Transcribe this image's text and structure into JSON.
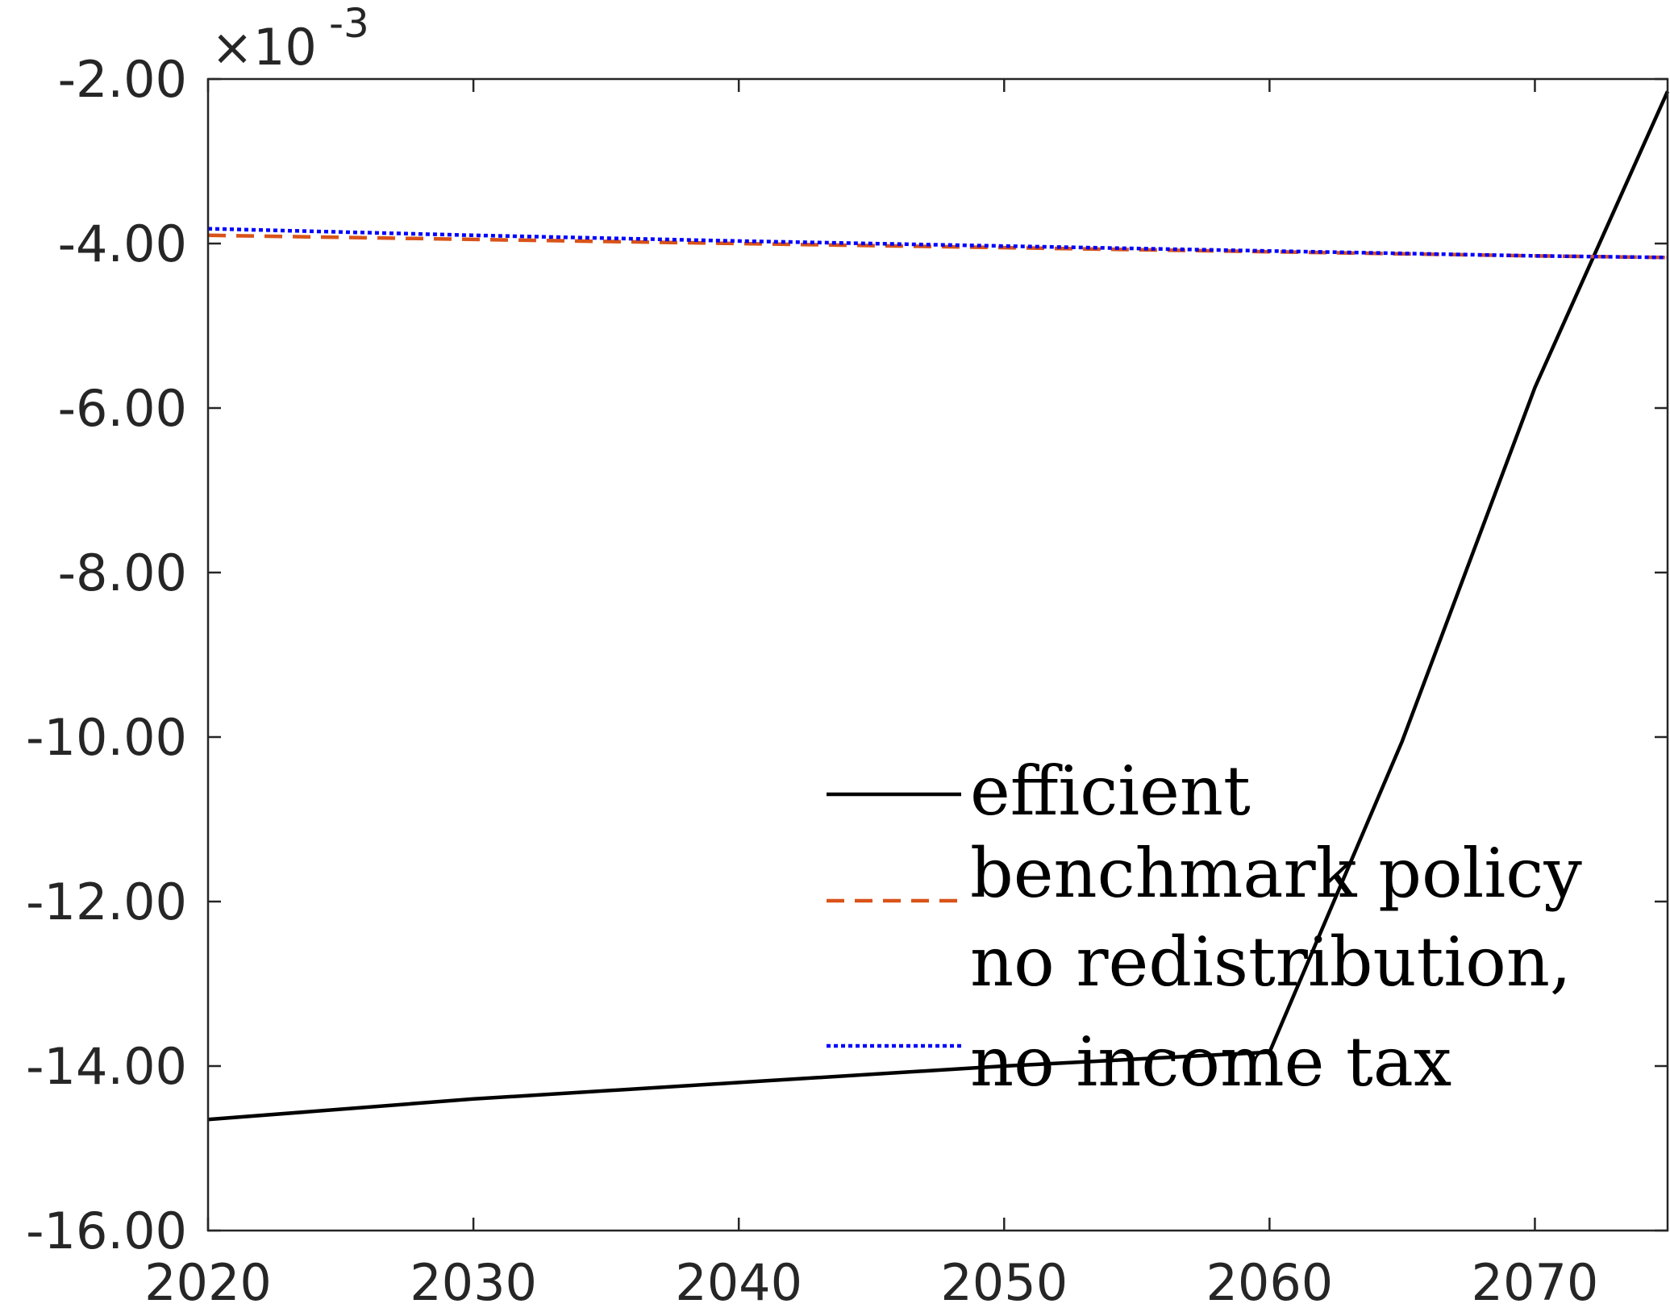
{
  "chart_data": {
    "type": "line",
    "title": "",
    "xlabel": "",
    "ylabel": "",
    "y_exponent_label": {
      "base": "×10",
      "power": "-3"
    },
    "xlim": [
      2020,
      2075
    ],
    "ylim": [
      -16,
      -2
    ],
    "x_ticks": [
      2020,
      2030,
      2040,
      2050,
      2060,
      2070
    ],
    "x_tick_labels": [
      "2020",
      "2030",
      "2040",
      "2050",
      "2060",
      "2070"
    ],
    "y_ticks": [
      -16,
      -14,
      -12,
      -10,
      -8,
      -6,
      -4,
      -2
    ],
    "y_tick_labels": [
      "-16.00",
      "-14.00",
      "-12.00",
      "-10.00",
      "-8.00",
      "-6.00",
      "-4.00",
      "-2.00"
    ],
    "grid": false,
    "legend_position": "bottom-right",
    "series": [
      {
        "name": "efficient",
        "color": "#000000",
        "style": "solid",
        "x": [
          2020,
          2030,
          2040,
          2050,
          2060,
          2065,
          2070,
          2075
        ],
        "y": [
          -14.65,
          -14.4,
          -14.2,
          -14.0,
          -13.83,
          -10.05,
          -5.75,
          -2.15
        ]
      },
      {
        "name": "benchmark policy",
        "color": "#d95319",
        "style": "dashed",
        "x": [
          2020,
          2030,
          2040,
          2050,
          2060,
          2070,
          2075
        ],
        "y": [
          -3.9,
          -3.95,
          -4.0,
          -4.05,
          -4.1,
          -4.15,
          -4.17
        ]
      },
      {
        "name": "no redistribution, no income tax",
        "legend_lines": [
          "no redistribution,",
          "no income tax"
        ],
        "color": "#0000ff",
        "style": "dotted",
        "x": [
          2020,
          2030,
          2040,
          2050,
          2060,
          2070,
          2075
        ],
        "y": [
          -3.82,
          -3.9,
          -3.97,
          -4.03,
          -4.09,
          -4.15,
          -4.17
        ]
      }
    ]
  }
}
